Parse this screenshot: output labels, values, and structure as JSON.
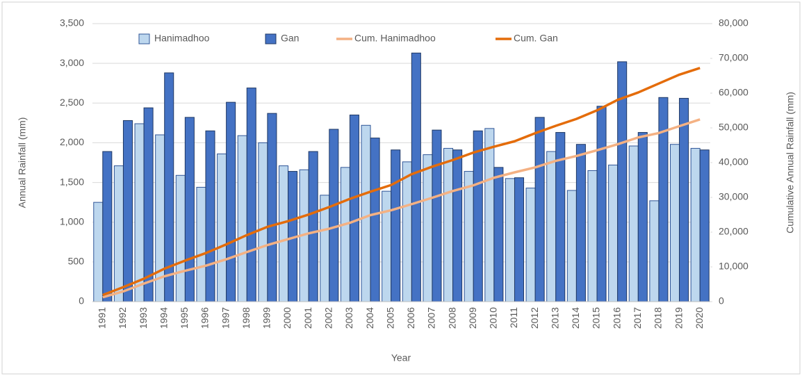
{
  "chart_data": {
    "type": "bar-line",
    "x_label": "Year",
    "y_label": "Annual Rainfall (mm)",
    "y2_label": "Cumulative Annual Rainfall (mm)",
    "categories": [
      "1991",
      "1992",
      "1993",
      "1994",
      "1995",
      "1996",
      "1997",
      "1998",
      "1999",
      "2000",
      "2001",
      "2002",
      "2003",
      "2004",
      "2005",
      "2006",
      "2007",
      "2008",
      "2009",
      "2010",
      "2011",
      "2012",
      "2013",
      "2014",
      "2015",
      "2016",
      "2017",
      "2018",
      "2019",
      "2020"
    ],
    "series": [
      {
        "name": "Hanimadhoo",
        "kind": "bar",
        "color": "#bdd7ee",
        "edge": "#2f5597",
        "values": [
          1250,
          1710,
          2240,
          2100,
          1590,
          1440,
          1860,
          2090,
          2000,
          1710,
          1660,
          1340,
          1690,
          2220,
          1390,
          1760,
          1850,
          1930,
          1640,
          2180,
          1550,
          1430,
          1890,
          1400,
          1650,
          1720,
          1960,
          1270,
          1980,
          1930
        ]
      },
      {
        "name": "Gan",
        "kind": "bar",
        "color": "#4472c4",
        "edge": "#1f3864",
        "values": [
          1890,
          2280,
          2440,
          2880,
          2320,
          2150,
          2510,
          2690,
          2370,
          1640,
          1890,
          2170,
          2350,
          2060,
          1910,
          3130,
          2160,
          1910,
          2150,
          1690,
          1560,
          2320,
          2130,
          1980,
          2460,
          3020,
          2130,
          2570,
          2560,
          1910
        ]
      },
      {
        "name": "Cum. Hanimadhoo",
        "kind": "line",
        "axis": "y2",
        "color": "#f4b183",
        "values": [
          1250,
          2960,
          5200,
          7300,
          8890,
          10330,
          12190,
          14280,
          16280,
          17990,
          19650,
          20990,
          22680,
          24900,
          26290,
          28050,
          29900,
          31830,
          33470,
          35650,
          37200,
          38630,
          40520,
          41920,
          43570,
          45290,
          47250,
          48520,
          50500,
          52430
        ]
      },
      {
        "name": "Cum. Gan",
        "kind": "line",
        "axis": "y2",
        "color": "#e46c0a",
        "values": [
          1890,
          4170,
          6610,
          9490,
          11810,
          13960,
          16470,
          19160,
          21530,
          23170,
          25060,
          27230,
          29580,
          31640,
          33550,
          36680,
          38840,
          40750,
          42900,
          44590,
          46150,
          48470,
          50600,
          52580,
          55040,
          58060,
          60190,
          62760,
          65320,
          67230
        ]
      }
    ],
    "ylim": [
      0,
      3500
    ],
    "yticks": [
      0,
      500,
      {
        "value": 1000,
        "label": "1,000"
      },
      {
        "value": 1500,
        "label": "1,500"
      },
      {
        "value": 2000,
        "label": "2,000"
      },
      {
        "value": 2500,
        "label": "2,500"
      },
      {
        "value": 3000,
        "label": "3,000"
      },
      {
        "value": 3500,
        "label": "3,500"
      }
    ],
    "y2lim": [
      0,
      80000
    ],
    "y2ticks": [
      0,
      {
        "value": 10000,
        "label": "10,000"
      },
      {
        "value": 20000,
        "label": "20,000"
      },
      {
        "value": 30000,
        "label": "30,000"
      },
      {
        "value": 40000,
        "label": "40,000"
      },
      {
        "value": 50000,
        "label": "50,000"
      },
      {
        "value": 60000,
        "label": "60,000"
      },
      {
        "value": 70000,
        "label": "70,000"
      },
      {
        "value": 80000,
        "label": "80,000"
      }
    ],
    "grid": true,
    "legend": "top"
  }
}
